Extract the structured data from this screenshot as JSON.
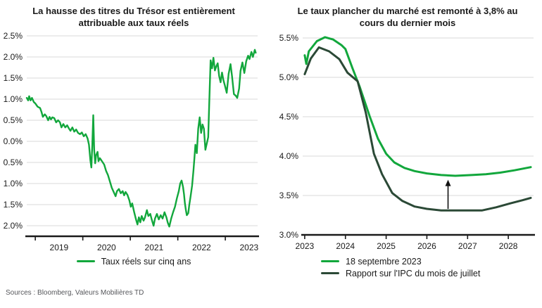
{
  "page": {
    "source_note": "Sources : Bloomberg, Valeurs Mobilières TD"
  },
  "colors": {
    "bright_green": "#12a73c",
    "dark_green": "#2b4936",
    "gridline": "#d9d9d9",
    "axis": "#1a1a1a"
  },
  "chart_data": [
    {
      "type": "line",
      "title": "La hausse des titres du Trésor est entièrement attribuable aux taux réels",
      "ylabel": "",
      "xlabel": "",
      "y_tick_labels": [
        "2.5%",
        "2.0%",
        "1.5%",
        "1.0%",
        "0.5%",
        "0.0%",
        "-0.5%",
        "-1.0%",
        "-1.5%",
        "-2.0%"
      ],
      "y_tick_values": [
        2.5,
        2.0,
        1.5,
        1.0,
        0.5,
        0.0,
        -0.5,
        -1.0,
        -1.5,
        -2.0
      ],
      "ylim": [
        -2.25,
        2.5
      ],
      "x_tick_labels": [
        "2019",
        "2020",
        "2021",
        "2022",
        "2023"
      ],
      "x_tick_values": [
        2019,
        2020,
        2021,
        2022,
        2023
      ],
      "x_labels_between_ticks": true,
      "xlim": [
        2018.82,
        2023.68
      ],
      "grid": true,
      "legend_position": "bottom-center",
      "series": [
        {
          "name": "Taux réels sur cinq ans",
          "color": "#12a73c",
          "width": 2.4,
          "points": [
            [
              2018.82,
              1.03
            ],
            [
              2018.85,
              0.97
            ],
            [
              2018.87,
              1.07
            ],
            [
              2018.9,
              0.97
            ],
            [
              2018.93,
              1.03
            ],
            [
              2018.97,
              0.93
            ],
            [
              2019.0,
              0.9
            ],
            [
              2019.05,
              0.82
            ],
            [
              2019.1,
              0.79
            ],
            [
              2019.13,
              0.7
            ],
            [
              2019.16,
              0.58
            ],
            [
              2019.2,
              0.64
            ],
            [
              2019.23,
              0.6
            ],
            [
              2019.27,
              0.5
            ],
            [
              2019.3,
              0.58
            ],
            [
              2019.33,
              0.52
            ],
            [
              2019.36,
              0.57
            ],
            [
              2019.4,
              0.55
            ],
            [
              2019.44,
              0.45
            ],
            [
              2019.48,
              0.5
            ],
            [
              2019.52,
              0.45
            ],
            [
              2019.55,
              0.33
            ],
            [
              2019.59,
              0.41
            ],
            [
              2019.63,
              0.33
            ],
            [
              2019.67,
              0.38
            ],
            [
              2019.71,
              0.3
            ],
            [
              2019.74,
              0.25
            ],
            [
              2019.78,
              0.33
            ],
            [
              2019.82,
              0.23
            ],
            [
              2019.86,
              0.28
            ],
            [
              2019.9,
              0.2
            ],
            [
              2019.94,
              0.17
            ],
            [
              2019.98,
              0.21
            ],
            [
              2020.02,
              0.12
            ],
            [
              2020.06,
              0.17
            ],
            [
              2020.1,
              0.07
            ],
            [
              2020.13,
              -0.08
            ],
            [
              2020.16,
              -0.45
            ],
            [
              2020.18,
              -0.62
            ],
            [
              2020.2,
              -0.1
            ],
            [
              2020.22,
              0.62
            ],
            [
              2020.24,
              -0.2
            ],
            [
              2020.26,
              -0.52
            ],
            [
              2020.28,
              -0.33
            ],
            [
              2020.31,
              -0.25
            ],
            [
              2020.33,
              -0.47
            ],
            [
              2020.36,
              -0.4
            ],
            [
              2020.39,
              -0.45
            ],
            [
              2020.42,
              -0.5
            ],
            [
              2020.45,
              -0.55
            ],
            [
              2020.49,
              -0.7
            ],
            [
              2020.53,
              -0.8
            ],
            [
              2020.57,
              -0.95
            ],
            [
              2020.61,
              -1.1
            ],
            [
              2020.65,
              -1.2
            ],
            [
              2020.69,
              -1.3
            ],
            [
              2020.72,
              -1.18
            ],
            [
              2020.76,
              -1.13
            ],
            [
              2020.8,
              -1.23
            ],
            [
              2020.84,
              -1.18
            ],
            [
              2020.87,
              -1.28
            ],
            [
              2020.9,
              -1.2
            ],
            [
              2020.94,
              -1.27
            ],
            [
              2020.98,
              -1.4
            ],
            [
              2021.01,
              -1.55
            ],
            [
              2021.04,
              -1.47
            ],
            [
              2021.08,
              -1.67
            ],
            [
              2021.12,
              -1.85
            ],
            [
              2021.15,
              -1.97
            ],
            [
              2021.18,
              -1.8
            ],
            [
              2021.21,
              -1.92
            ],
            [
              2021.24,
              -1.77
            ],
            [
              2021.28,
              -1.88
            ],
            [
              2021.31,
              -1.8
            ],
            [
              2021.35,
              -1.63
            ],
            [
              2021.38,
              -1.77
            ],
            [
              2021.42,
              -1.72
            ],
            [
              2021.45,
              -1.85
            ],
            [
              2021.49,
              -2.0
            ],
            [
              2021.52,
              -1.83
            ],
            [
              2021.56,
              -1.72
            ],
            [
              2021.6,
              -1.85
            ],
            [
              2021.64,
              -1.75
            ],
            [
              2021.68,
              -1.83
            ],
            [
              2021.72,
              -1.68
            ],
            [
              2021.76,
              -1.8
            ],
            [
              2021.79,
              -1.93
            ],
            [
              2021.82,
              -2.02
            ],
            [
              2021.86,
              -1.83
            ],
            [
              2021.9,
              -1.68
            ],
            [
              2021.94,
              -1.55
            ],
            [
              2021.98,
              -1.35
            ],
            [
              2022.02,
              -1.18
            ],
            [
              2022.05,
              -1.0
            ],
            [
              2022.08,
              -0.93
            ],
            [
              2022.11,
              -1.08
            ],
            [
              2022.13,
              -1.25
            ],
            [
              2022.15,
              -1.47
            ],
            [
              2022.17,
              -1.63
            ],
            [
              2022.19,
              -1.75
            ],
            [
              2022.22,
              -1.7
            ],
            [
              2022.24,
              -1.52
            ],
            [
              2022.27,
              -1.3
            ],
            [
              2022.3,
              -1.05
            ],
            [
              2022.33,
              -0.68
            ],
            [
              2022.35,
              -0.4
            ],
            [
              2022.37,
              -0.08
            ],
            [
              2022.4,
              -0.28
            ],
            [
              2022.43,
              0.3
            ],
            [
              2022.46,
              0.57
            ],
            [
              2022.49,
              0.2
            ],
            [
              2022.52,
              0.4
            ],
            [
              2022.55,
              0.3
            ],
            [
              2022.58,
              -0.2
            ],
            [
              2022.61,
              -0.05
            ],
            [
              2022.64,
              0.1
            ],
            [
              2022.66,
              0.87
            ],
            [
              2022.69,
              1.92
            ],
            [
              2022.72,
              1.73
            ],
            [
              2022.75,
              1.98
            ],
            [
              2022.78,
              1.68
            ],
            [
              2022.81,
              1.78
            ],
            [
              2022.84,
              1.85
            ],
            [
              2022.87,
              1.55
            ],
            [
              2022.9,
              1.4
            ],
            [
              2022.93,
              1.63
            ],
            [
              2022.96,
              1.45
            ],
            [
              2022.99,
              1.33
            ],
            [
              2023.03,
              1.15
            ],
            [
              2023.07,
              1.6
            ],
            [
              2023.11,
              1.83
            ],
            [
              2023.14,
              1.55
            ],
            [
              2023.18,
              1.12
            ],
            [
              2023.22,
              1.08
            ],
            [
              2023.25,
              1.03
            ],
            [
              2023.29,
              1.25
            ],
            [
              2023.32,
              1.67
            ],
            [
              2023.36,
              1.87
            ],
            [
              2023.4,
              1.62
            ],
            [
              2023.44,
              1.9
            ],
            [
              2023.48,
              2.03
            ],
            [
              2023.51,
              1.95
            ],
            [
              2023.55,
              2.12
            ],
            [
              2023.58,
              2.0
            ],
            [
              2023.62,
              2.17
            ],
            [
              2023.64,
              2.1
            ]
          ]
        }
      ]
    },
    {
      "type": "line",
      "title": "Le taux plancher du marché est remonté à 3,8% au cours du dernier mois",
      "ylabel": "",
      "xlabel": "",
      "y_tick_labels": [
        "5.5%",
        "5.0%",
        "4.5%",
        "4.0%",
        "3.5%",
        "3.0%"
      ],
      "y_tick_values": [
        5.5,
        5.0,
        4.5,
        4.0,
        3.5,
        3.0
      ],
      "ylim": [
        3.0,
        5.5
      ],
      "x_tick_labels": [
        "2023",
        "2024",
        "2025",
        "2026",
        "2027",
        "2028"
      ],
      "x_tick_values": [
        2023,
        2024,
        2025,
        2026,
        2027,
        2028
      ],
      "x_labels_between_ticks": false,
      "xlim": [
        2022.95,
        2028.62
      ],
      "grid": true,
      "legend_position": "bottom-left",
      "series": [
        {
          "name": "18 septembre 2023",
          "color": "#12a73c",
          "width": 3,
          "points": [
            [
              2023.0,
              5.28
            ],
            [
              2023.04,
              5.17
            ],
            [
              2023.1,
              5.33
            ],
            [
              2023.3,
              5.46
            ],
            [
              2023.5,
              5.51
            ],
            [
              2023.7,
              5.48
            ],
            [
              2023.9,
              5.41
            ],
            [
              2024.0,
              5.36
            ],
            [
              2024.17,
              5.12
            ],
            [
              2024.35,
              4.88
            ],
            [
              2024.6,
              4.5
            ],
            [
              2024.8,
              4.22
            ],
            [
              2025.0,
              4.03
            ],
            [
              2025.2,
              3.92
            ],
            [
              2025.45,
              3.85
            ],
            [
              2025.7,
              3.81
            ],
            [
              2026.0,
              3.78
            ],
            [
              2026.35,
              3.76
            ],
            [
              2026.7,
              3.75
            ],
            [
              2027.1,
              3.76
            ],
            [
              2027.45,
              3.77
            ],
            [
              2027.8,
              3.79
            ],
            [
              2028.15,
              3.82
            ],
            [
              2028.55,
              3.86
            ]
          ]
        },
        {
          "name": "Rapport sur l'IPC du mois de juillet",
          "color": "#2b4936",
          "width": 3,
          "points": [
            [
              2023.0,
              5.04
            ],
            [
              2023.15,
              5.24
            ],
            [
              2023.35,
              5.38
            ],
            [
              2023.6,
              5.33
            ],
            [
              2023.85,
              5.23
            ],
            [
              2024.05,
              5.06
            ],
            [
              2024.3,
              4.95
            ],
            [
              2024.5,
              4.55
            ],
            [
              2024.7,
              4.03
            ],
            [
              2024.9,
              3.77
            ],
            [
              2025.15,
              3.53
            ],
            [
              2025.4,
              3.43
            ],
            [
              2025.7,
              3.36
            ],
            [
              2026.0,
              3.33
            ],
            [
              2026.35,
              3.31
            ],
            [
              2026.7,
              3.31
            ],
            [
              2027.05,
              3.31
            ],
            [
              2027.35,
              3.31
            ],
            [
              2027.7,
              3.35
            ],
            [
              2028.05,
              3.4
            ],
            [
              2028.35,
              3.44
            ],
            [
              2028.55,
              3.47
            ]
          ]
        }
      ],
      "annotation": {
        "kind": "vertical-arrow",
        "x": 2026.52,
        "y_from": 3.33,
        "y_to": 3.7,
        "color": "#111111"
      }
    }
  ]
}
